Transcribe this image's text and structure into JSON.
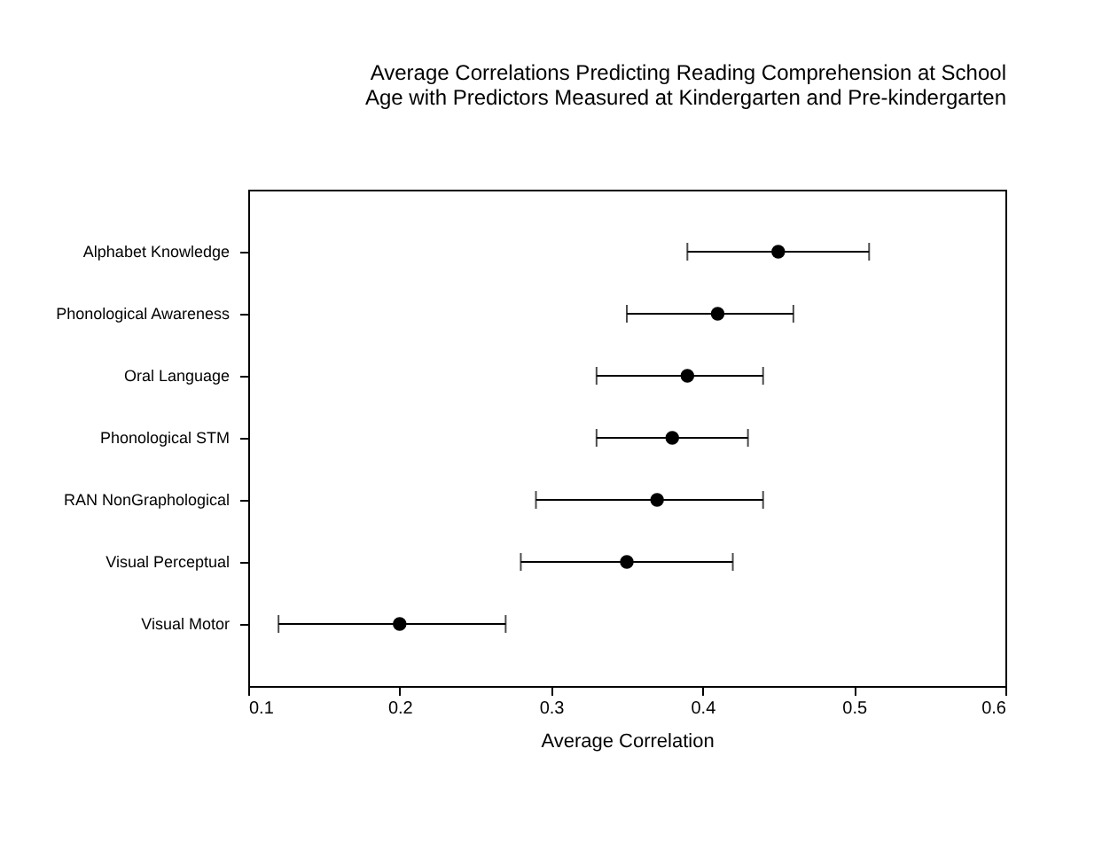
{
  "chart_data": {
    "type": "scatter",
    "orientation": "horizontal",
    "title": "Average Correlations Predicting Reading Comprehension at School\nAge with Predictors Measured at Kindergarten and Pre-kindergarten",
    "xlabel": "Average Correlation",
    "categories": [
      "Alphabet Knowledge",
      "Phonological Awareness",
      "Oral Language",
      "Phonological  STM",
      "RAN NonGraphological",
      "Visual Perceptual",
      "Visual Motor"
    ],
    "values": [
      0.45,
      0.41,
      0.39,
      0.38,
      0.37,
      0.35,
      0.2
    ],
    "errors": [
      [
        0.39,
        0.51
      ],
      [
        0.35,
        0.46
      ],
      [
        0.33,
        0.44
      ],
      [
        0.33,
        0.43
      ],
      [
        0.29,
        0.44
      ],
      [
        0.28,
        0.42
      ],
      [
        0.12,
        0.27
      ]
    ],
    "color": "#000000",
    "xlim": [
      0.1,
      0.6
    ],
    "xticks": [
      0.1,
      0.2,
      0.3,
      0.4,
      0.5,
      0.6
    ],
    "grid": false,
    "marker": "circle"
  }
}
